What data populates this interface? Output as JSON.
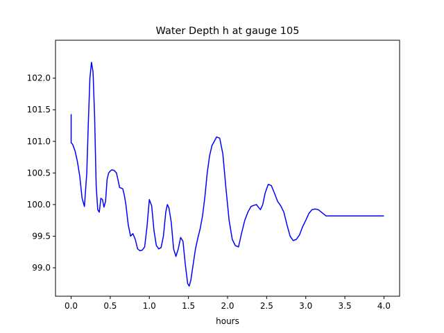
{
  "chart_data": {
    "type": "line",
    "title": "Water Depth h at gauge 105",
    "xlabel": "hours",
    "ylabel": "",
    "xlim": [
      -0.2,
      4.2
    ],
    "ylim": [
      98.55,
      102.6
    ],
    "grid": false,
    "xticks": [
      0.0,
      0.5,
      1.0,
      1.5,
      2.0,
      2.5,
      3.0,
      3.5,
      4.0
    ],
    "xtick_labels": [
      "0.0",
      "0.5",
      "1.0",
      "1.5",
      "2.0",
      "2.5",
      "3.0",
      "3.5",
      "4.0"
    ],
    "yticks": [
      99.0,
      99.5,
      100.0,
      100.5,
      101.0,
      101.5,
      102.0
    ],
    "ytick_labels": [
      "99.0",
      "99.5",
      "100.0",
      "100.5",
      "101.0",
      "101.5",
      "102.0"
    ],
    "series": [
      {
        "color": "#0000ff",
        "x": [
          0.0,
          0.0,
          0.02,
          0.05,
          0.08,
          0.11,
          0.14,
          0.17,
          0.2,
          0.22,
          0.24,
          0.26,
          0.28,
          0.3,
          0.32,
          0.34,
          0.36,
          0.38,
          0.4,
          0.42,
          0.44,
          0.46,
          0.48,
          0.5,
          0.52,
          0.55,
          0.58,
          0.62,
          0.66,
          0.68,
          0.7,
          0.73,
          0.76,
          0.79,
          0.82,
          0.85,
          0.88,
          0.91,
          0.94,
          0.97,
          1.0,
          1.03,
          1.06,
          1.09,
          1.12,
          1.15,
          1.18,
          1.21,
          1.23,
          1.25,
          1.28,
          1.31,
          1.34,
          1.37,
          1.4,
          1.43,
          1.46,
          1.49,
          1.51,
          1.53,
          1.56,
          1.59,
          1.62,
          1.65,
          1.68,
          1.71,
          1.74,
          1.77,
          1.8,
          1.83,
          1.86,
          1.9,
          1.94,
          1.98,
          2.02,
          2.06,
          2.1,
          2.14,
          2.18,
          2.22,
          2.26,
          2.3,
          2.34,
          2.37,
          2.4,
          2.42,
          2.45,
          2.48,
          2.52,
          2.56,
          2.6,
          2.64,
          2.68,
          2.72,
          2.76,
          2.8,
          2.84,
          2.88,
          2.92,
          2.96,
          3.0,
          3.04,
          3.08,
          3.12,
          3.16,
          3.2,
          3.23,
          3.26,
          3.3,
          3.34,
          3.38,
          3.42,
          3.46,
          3.5,
          3.54,
          3.58,
          3.62,
          3.66,
          3.7,
          3.74,
          3.78,
          3.82,
          3.86,
          3.9,
          3.94,
          3.97,
          4.0
        ],
        "y": [
          101.43,
          100.98,
          100.95,
          100.85,
          100.68,
          100.45,
          100.1,
          99.97,
          100.5,
          101.3,
          102.0,
          102.25,
          102.1,
          101.4,
          100.3,
          99.92,
          99.88,
          100.1,
          100.08,
          99.96,
          100.05,
          100.4,
          100.5,
          100.53,
          100.55,
          100.54,
          100.5,
          100.27,
          100.25,
          100.15,
          100.0,
          99.68,
          99.5,
          99.54,
          99.45,
          99.3,
          99.27,
          99.28,
          99.33,
          99.65,
          100.08,
          99.98,
          99.58,
          99.35,
          99.3,
          99.32,
          99.5,
          99.88,
          100.0,
          99.95,
          99.72,
          99.3,
          99.18,
          99.3,
          99.48,
          99.42,
          99.05,
          98.75,
          98.71,
          98.8,
          99.05,
          99.3,
          99.47,
          99.62,
          99.82,
          100.12,
          100.5,
          100.77,
          100.93,
          101.0,
          101.07,
          101.05,
          100.8,
          100.25,
          99.75,
          99.45,
          99.35,
          99.33,
          99.55,
          99.75,
          99.88,
          99.97,
          99.99,
          100.0,
          99.95,
          99.92,
          100.0,
          100.18,
          100.32,
          100.3,
          100.18,
          100.05,
          99.98,
          99.88,
          99.68,
          99.5,
          99.43,
          99.45,
          99.52,
          99.65,
          99.75,
          99.86,
          99.92,
          99.93,
          99.92,
          99.88,
          99.85,
          99.82,
          99.82,
          99.82,
          99.82,
          99.82,
          99.82,
          99.82,
          99.82,
          99.82,
          99.82,
          99.82,
          99.82,
          99.82,
          99.82,
          99.82,
          99.82,
          99.82,
          99.82,
          99.82,
          99.82
        ]
      }
    ]
  }
}
